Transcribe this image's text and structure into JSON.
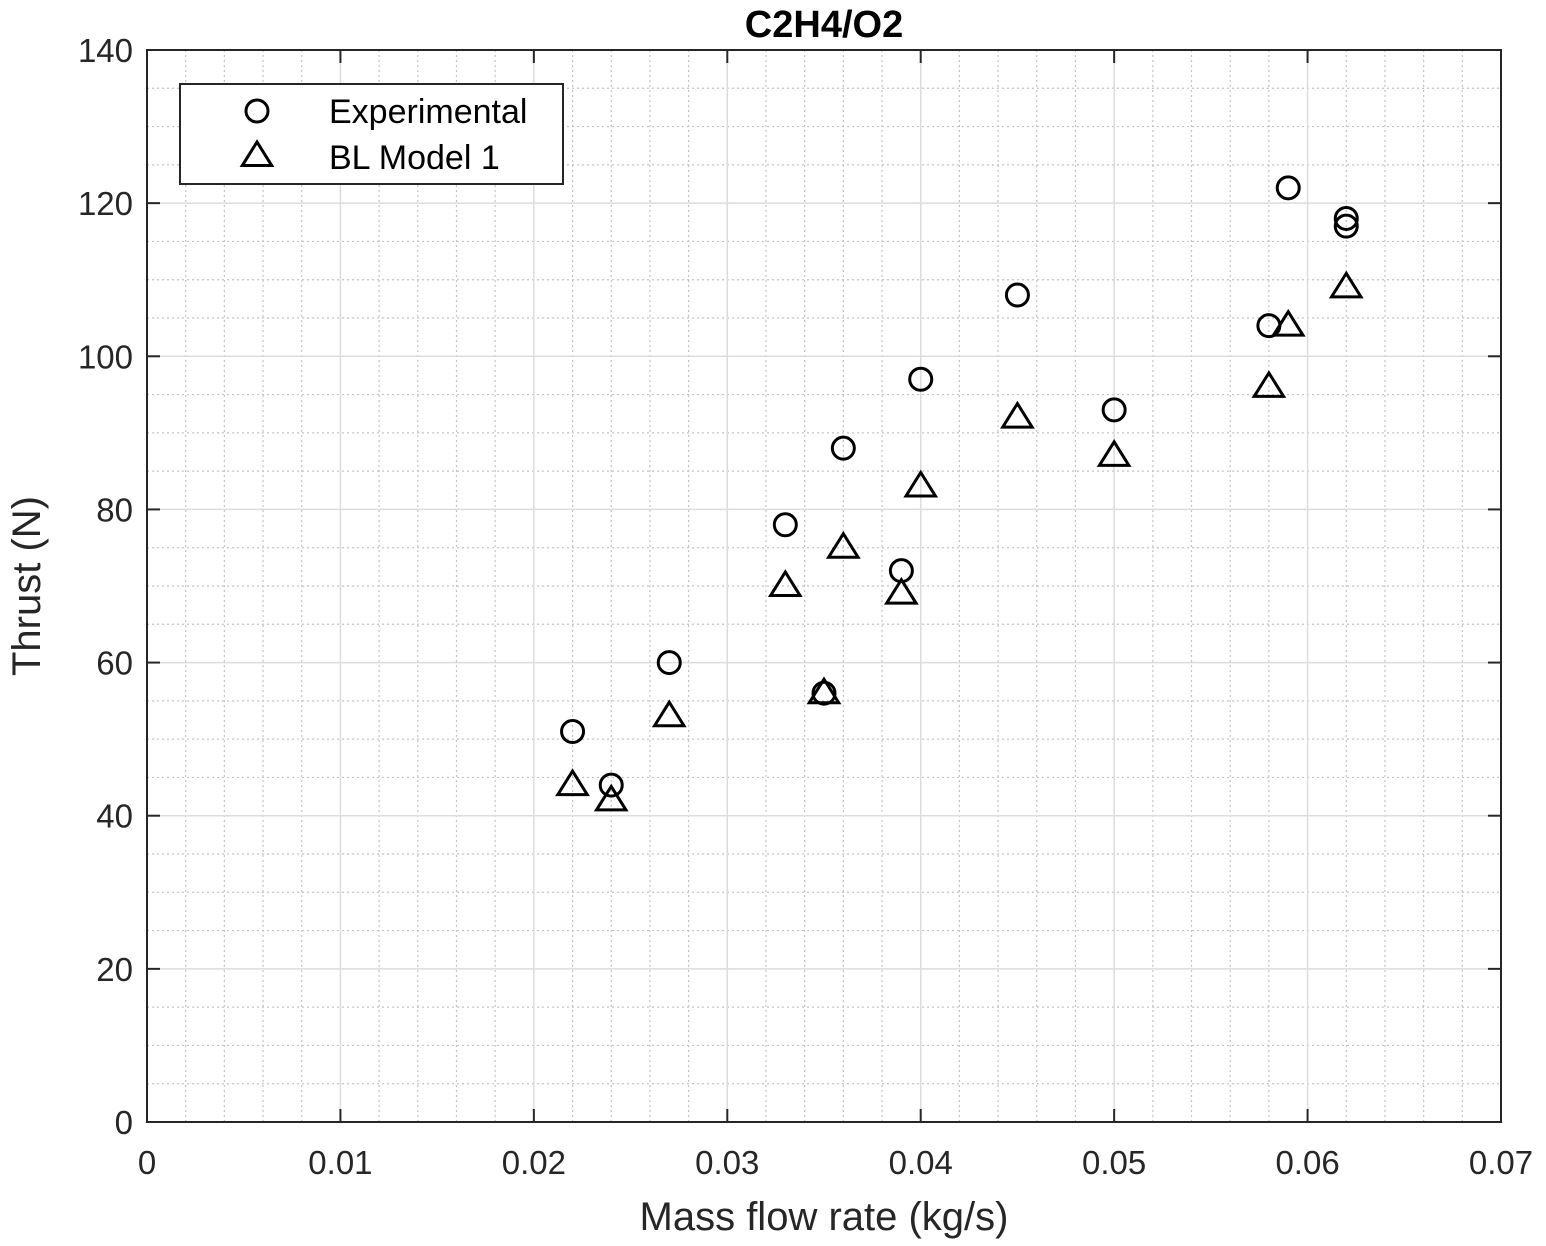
{
  "chart_data": {
    "type": "scatter",
    "title": "C2H4/O2",
    "xlabel": "Mass flow rate (kg/s)",
    "ylabel": "Thrust (N)",
    "xlim": [
      0,
      0.07
    ],
    "ylim": [
      0,
      140
    ],
    "xticks": [
      0,
      0.01,
      0.02,
      0.03,
      0.04,
      0.05,
      0.06,
      0.07
    ],
    "xtick_labels": [
      "0",
      "0.01",
      "0.02",
      "0.03",
      "0.04",
      "0.05",
      "0.06",
      "0.07"
    ],
    "yticks": [
      0,
      20,
      40,
      60,
      80,
      100,
      120,
      140
    ],
    "ytick_labels": [
      "0",
      "20",
      "40",
      "60",
      "80",
      "100",
      "120",
      "140"
    ],
    "grid": true,
    "minor_grid": true,
    "legend_position": "top-left",
    "series": [
      {
        "name": "Experimental",
        "marker": "circle",
        "color": "#000000",
        "points": [
          [
            0.022,
            51
          ],
          [
            0.024,
            44
          ],
          [
            0.027,
            60
          ],
          [
            0.033,
            78
          ],
          [
            0.035,
            56
          ],
          [
            0.036,
            88
          ],
          [
            0.039,
            72
          ],
          [
            0.04,
            97
          ],
          [
            0.045,
            108
          ],
          [
            0.05,
            93
          ],
          [
            0.058,
            104
          ],
          [
            0.059,
            122
          ],
          [
            0.062,
            118
          ],
          [
            0.062,
            117
          ]
        ]
      },
      {
        "name": "BL Model 1",
        "marker": "triangle",
        "color": "#000000",
        "points": [
          [
            0.022,
            44
          ],
          [
            0.024,
            42
          ],
          [
            0.027,
            53
          ],
          [
            0.033,
            70
          ],
          [
            0.035,
            56
          ],
          [
            0.036,
            75
          ],
          [
            0.039,
            69
          ],
          [
            0.04,
            83
          ],
          [
            0.045,
            92
          ],
          [
            0.05,
            87
          ],
          [
            0.058,
            96
          ],
          [
            0.059,
            104
          ],
          [
            0.062,
            109
          ]
        ]
      }
    ]
  }
}
